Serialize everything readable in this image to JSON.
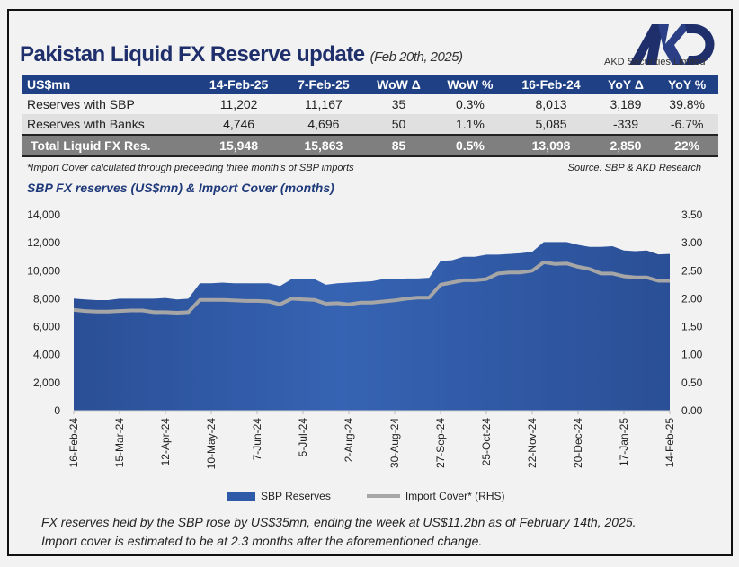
{
  "header": {
    "title": "Pakistan Liquid FX Reserve update",
    "date": "(Feb 20th, 2025)",
    "logo_text": "AKD",
    "company": "AKD Securities Limited"
  },
  "table": {
    "columns": [
      "US$mn",
      "14-Feb-25",
      "7-Feb-25",
      "WoW Δ",
      "WoW %",
      "16-Feb-24",
      "YoY Δ",
      "YoY %"
    ],
    "rows": [
      [
        "Reserves with SBP",
        "11,202",
        "11,167",
        "35",
        "0.3%",
        "8,013",
        "3,189",
        "39.8%"
      ],
      [
        "Reserves with Banks",
        "4,746",
        "4,696",
        "50",
        "1.1%",
        "5,085",
        "-339",
        "-6.7%"
      ],
      [
        "Total Liquid FX Res.",
        "15,948",
        "15,863",
        "85",
        "0.5%",
        "13,098",
        "2,850",
        "22%"
      ]
    ]
  },
  "note": "*Import Cover calculated through preceeding three month's of SBP imports",
  "source": "Source: SBP & AKD Research",
  "colors": {
    "header": "#1f4085",
    "area": "#2f5aa8",
    "line": "#a6a6a6",
    "total_row": "#7f7f7f"
  },
  "chart_data": {
    "type": "area",
    "title": "SBP FX reserves (US$mn) & Import Cover (months)",
    "x_tick_labels": [
      "16-Feb-24",
      "15-Mar-24",
      "12-Apr-24",
      "10-May-24",
      "7-Jun-24",
      "5-Jul-24",
      "2-Aug-24",
      "30-Aug-24",
      "27-Sep-24",
      "25-Oct-24",
      "22-Nov-24",
      "20-Dec-24",
      "17-Jan-25",
      "14-Feb-25"
    ],
    "y_left": {
      "range": [
        0,
        14000
      ],
      "ticks": [
        "0",
        "2,000",
        "4,000",
        "6,000",
        "8,000",
        "10,000",
        "12,000",
        "14,000"
      ]
    },
    "y_right": {
      "range": [
        0,
        3.5
      ],
      "ticks": [
        "0.00",
        "0.50",
        "1.00",
        "1.50",
        "2.00",
        "2.50",
        "3.00",
        "3.50"
      ]
    },
    "grid": false,
    "legend_position": "bottom",
    "x_frequency": "weekly, 16-Feb-24 to 14-Feb-25",
    "series": [
      {
        "name": "SBP Reserves",
        "type": "area",
        "axis": "left",
        "values": [
          8013,
          7950,
          7900,
          7900,
          8000,
          8000,
          8000,
          8000,
          8050,
          7950,
          8000,
          9100,
          9100,
          9150,
          9100,
          9100,
          9100,
          9100,
          8900,
          9400,
          9400,
          9400,
          9000,
          9100,
          9150,
          9200,
          9250,
          9400,
          9400,
          9450,
          9450,
          9500,
          10700,
          10750,
          11000,
          11000,
          11150,
          11150,
          11200,
          11250,
          11350,
          12050,
          12050,
          12050,
          11850,
          11700,
          11700,
          11750,
          11450,
          11400,
          11450,
          11167,
          11202
        ]
      },
      {
        "name": "Import Cover* (RHS)",
        "type": "line",
        "axis": "right",
        "values": [
          1.8,
          1.78,
          1.77,
          1.77,
          1.78,
          1.79,
          1.79,
          1.76,
          1.76,
          1.75,
          1.76,
          1.98,
          1.98,
          1.98,
          1.97,
          1.96,
          1.96,
          1.95,
          1.9,
          2.0,
          1.99,
          1.98,
          1.91,
          1.92,
          1.9,
          1.93,
          1.93,
          1.95,
          1.97,
          2.0,
          2.02,
          2.02,
          2.25,
          2.29,
          2.33,
          2.33,
          2.35,
          2.45,
          2.47,
          2.47,
          2.5,
          2.65,
          2.62,
          2.63,
          2.57,
          2.53,
          2.45,
          2.45,
          2.4,
          2.38,
          2.38,
          2.32,
          2.32
        ]
      }
    ]
  },
  "legend": {
    "area": "SBP Reserves",
    "line": "Import Cover* (RHS)"
  },
  "footer": {
    "line1": "FX reserves held by the SBP rose by US$35mn, ending the week at US$11.2bn as of February 14th, 2025.",
    "line2": "Import cover is estimated to be at 2.3 months after the aforementioned change."
  }
}
